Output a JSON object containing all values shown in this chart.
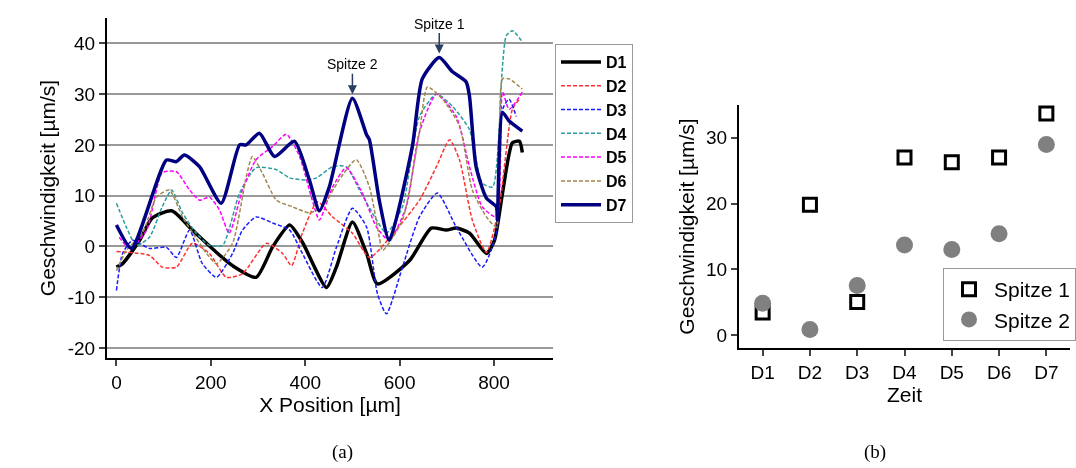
{
  "chart_data": [
    {
      "type": "line",
      "xlabel": "X Position [µm]",
      "ylabel": "Geschwindigkeit [µm/s]",
      "xlim": [
        -20,
        925
      ],
      "ylim": [
        -22,
        45
      ],
      "xticks": [
        0,
        200,
        400,
        600,
        800
      ],
      "yticks": [
        -20,
        -10,
        0,
        10,
        20,
        30,
        40
      ],
      "grid": "y",
      "legend": "right",
      "marker": "none",
      "annotations": [
        {
          "text": "Spitze 1",
          "x": 684,
          "y": 37.2
        },
        {
          "text": "Spitze 2",
          "x": 500,
          "y": 29.2
        },
        "(a)"
      ],
      "series": [
        {
          "name": "D1",
          "color": "#000000",
          "line_style": "solid",
          "x": [
            0,
            13,
            49,
            76,
            117,
            161,
            212,
            246,
            296,
            331,
            367,
            394,
            445,
            466,
            500,
            530,
            553,
            621,
            667,
            699,
            720,
            748,
            784,
            801,
            818,
            839,
            854,
            860
          ],
          "values": [
            -4.1,
            -3.4,
            1.2,
            5.6,
            7,
            3.2,
            -1.2,
            -3.8,
            -6.1,
            -0.1,
            4.2,
            0.8,
            -8.1,
            -4.1,
            4.8,
            -1.4,
            -7.4,
            -2.8,
            3.6,
            3.2,
            3.6,
            2.6,
            -1.4,
            1.2,
            10.5,
            20.4,
            20.7,
            18.5
          ]
        },
        {
          "name": "D2",
          "color": "#ff3030",
          "line_style": "dashed",
          "x": [
            0,
            70,
            97,
            127,
            161,
            197,
            233,
            267,
            318,
            352,
            371,
            394,
            426,
            458,
            500,
            536,
            578,
            642,
            678,
            706,
            727,
            754,
            784,
            811,
            839,
            854
          ],
          "values": [
            -1,
            -1.8,
            -4.1,
            -4.1,
            0.6,
            -1.4,
            -6.1,
            -5.4,
            0.6,
            -1.4,
            -3.8,
            2.6,
            8.8,
            5.8,
            2.6,
            -2.2,
            1.6,
            9.1,
            15.7,
            21,
            17,
            5.2,
            -1.2,
            7.8,
            27,
            29
          ]
        },
        {
          "name": "D3",
          "color": "#1a1aff",
          "line_style": "dashed",
          "x": [
            0,
            13,
            34,
            70,
            106,
            127,
            155,
            182,
            212,
            246,
            267,
            296,
            331,
            367,
            394,
            436,
            466,
            500,
            530,
            553,
            572,
            606,
            642,
            680,
            720,
            775,
            805,
            818,
            832,
            847
          ],
          "values": [
            -8.7,
            -1.4,
            1.2,
            -0.4,
            -0.2,
            -2.2,
            3.2,
            -3.4,
            -6.1,
            -1.4,
            3.2,
            5.8,
            4.6,
            3.2,
            -1.4,
            -8.1,
            -0.2,
            7.5,
            3.8,
            -9.3,
            -13.3,
            -4.1,
            5.8,
            10.5,
            3.8,
            -4.1,
            2.6,
            27,
            29,
            25.6
          ]
        },
        {
          "name": "D4",
          "color": "#2a9d9d",
          "line_style": "dashed",
          "x": [
            0,
            21,
            42,
            70,
            97,
            117,
            140,
            169,
            197,
            225,
            261,
            296,
            339,
            367,
            403,
            424,
            458,
            487,
            515,
            551,
            572,
            606,
            642,
            678,
            712,
            748,
            775,
            797,
            818,
            826,
            839,
            860
          ],
          "values": [
            8.5,
            3.8,
            0.2,
            1.8,
            7.8,
            11.1,
            6.6,
            2.6,
            0.2,
            0.2,
            10.5,
            15.5,
            15.1,
            13.5,
            13.1,
            13.5,
            15.7,
            15.7,
            11.1,
            5.2,
            2.6,
            7.8,
            25.6,
            30,
            27.6,
            23,
            12.5,
            11.7,
            35.6,
            41.5,
            42.5,
            40.3
          ]
        },
        {
          "name": "D5",
          "color": "#ff00ff",
          "line_style": "dashed",
          "x": [
            6,
            28,
            64,
            97,
            127,
            155,
            176,
            197,
            218,
            239,
            267,
            296,
            331,
            360,
            388,
            415,
            430,
            458,
            487,
            521,
            551,
            578,
            614,
            642,
            678,
            720,
            748,
            775,
            805,
            818,
            832,
            860
          ],
          "values": [
            1.8,
            -0.4,
            3.2,
            14.5,
            14.7,
            11.1,
            9.1,
            9.7,
            7.2,
            2.6,
            11.1,
            17.1,
            19.7,
            22.1,
            17.7,
            9.1,
            5.2,
            11.7,
            15.5,
            10.5,
            3.8,
            1.2,
            7.8,
            22.5,
            30,
            25.6,
            15.7,
            7.8,
            5.8,
            30.4,
            27,
            30.4
          ]
        },
        {
          "name": "D6",
          "color": "#a0884a",
          "line_style": "dashed",
          "x": [
            0,
            21,
            55,
            85,
            112,
            140,
            169,
            191,
            212,
            246,
            275,
            288,
            309,
            339,
            373,
            409,
            436,
            472,
            508,
            536,
            557,
            564,
            606,
            642,
            659,
            691,
            727,
            754,
            784,
            805,
            818,
            832,
            860
          ],
          "values": [
            -4.8,
            -0.8,
            2.6,
            9.7,
            11.1,
            5.8,
            1.6,
            -1.4,
            -3.4,
            0.6,
            13.7,
            17.7,
            14.5,
            9.1,
            7.8,
            6.6,
            7.8,
            13.1,
            17.1,
            11.7,
            1.8,
            -0.8,
            5.2,
            22.5,
            31.4,
            29,
            23.7,
            11.1,
            5.8,
            3.8,
            33,
            33,
            31
          ]
        },
        {
          "name": "D7",
          "color": "#000080",
          "line_style": "solid",
          "x": [
            0,
            32,
            106,
            127,
            144,
            176,
            222,
            261,
            275,
            303,
            335,
            377,
            409,
            430,
            451,
            500,
            530,
            536,
            557,
            578,
            627,
            648,
            684,
            712,
            741,
            748,
            762,
            784,
            805,
            807,
            818,
            832,
            860
          ],
          "values": [
            4.2,
            -0.4,
            17,
            16.7,
            18,
            15.7,
            8.5,
            20,
            20,
            22.3,
            17.7,
            20.7,
            13,
            7,
            11.7,
            29.2,
            22,
            21,
            9,
            1.2,
            19.7,
            33,
            37.2,
            34.4,
            32.4,
            29.6,
            15.7,
            9.5,
            7.8,
            5.2,
            26.4,
            24.7,
            22.7
          ]
        }
      ]
    },
    {
      "type": "scatter",
      "xlabel": "Zeit",
      "ylabel": "Geschwindigkeit [µm/s]",
      "categories": [
        "D1",
        "D2",
        "D3",
        "D4",
        "D5",
        "D6",
        "D7"
      ],
      "ylim": [
        -2,
        35
      ],
      "yticks": [
        0,
        10,
        20,
        30
      ],
      "legend": "bottom right",
      "annotations": [
        "(b)"
      ],
      "series": [
        {
          "name": "Spitze 1",
          "color": "#000000",
          "marker": "square",
          "values": [
            3.4,
            19.8,
            5.0,
            27.0,
            26.3,
            27.0,
            33.7
          ]
        },
        {
          "name": "Spitze 2",
          "color": "#808080",
          "marker": "circle",
          "values": [
            4.8,
            0.8,
            7.5,
            13.7,
            13.0,
            15.4,
            29.0
          ]
        }
      ]
    }
  ]
}
